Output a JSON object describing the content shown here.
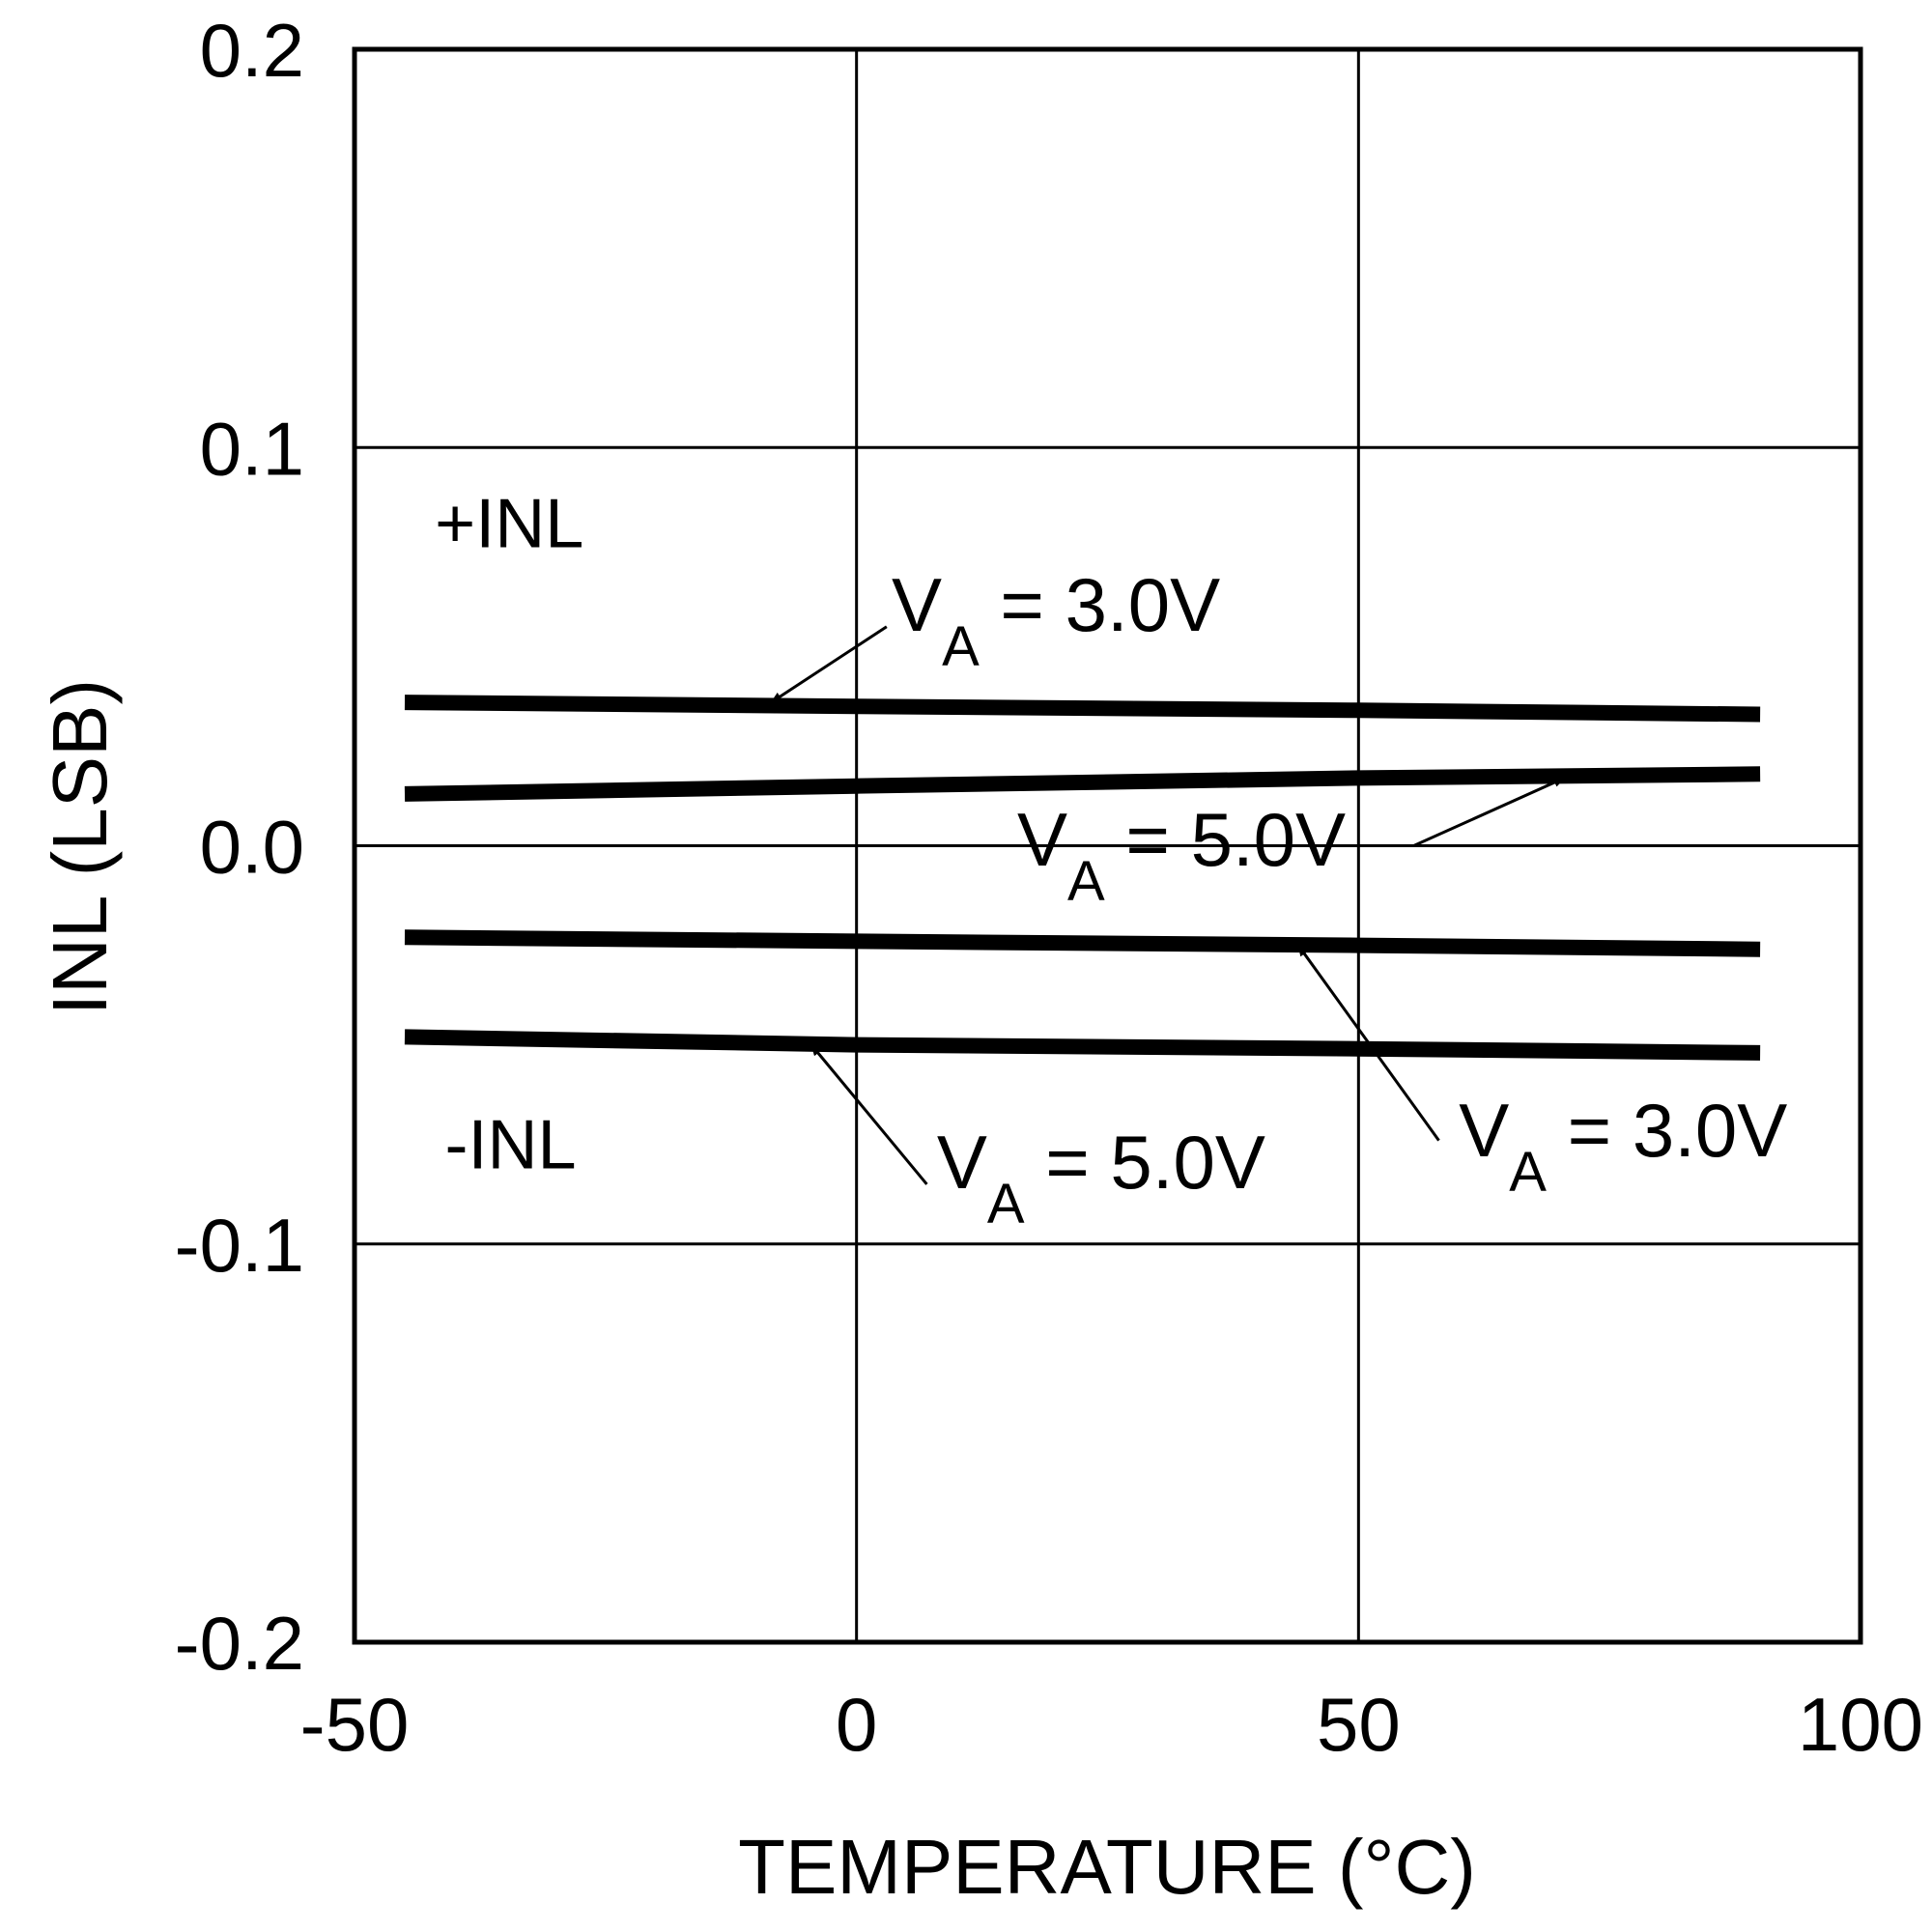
{
  "chart_data": {
    "type": "line",
    "xlabel": "TEMPERATURE (°C)",
    "ylabel": "INL (LSB)",
    "xlim": [
      -50,
      100
    ],
    "ylim": [
      -0.2,
      0.2
    ],
    "xticks": [
      -50,
      0,
      50,
      100
    ],
    "xtick_labels": [
      "-50",
      "0",
      "50",
      "100"
    ],
    "yticks": [
      0.2,
      0.1,
      0.0,
      -0.1,
      -0.2
    ],
    "ytick_labels": [
      "0.2",
      "0.1",
      "0.0",
      "-0.1",
      "-0.2"
    ],
    "grid": true,
    "colors": {
      "line": "#000000",
      "background": "#ffffff"
    },
    "series": [
      {
        "group": "+INL",
        "va": "3.0V",
        "x": [
          -45,
          0,
          50,
          90
        ],
        "y": [
          0.036,
          0.035,
          0.034,
          0.033
        ]
      },
      {
        "group": "+INL",
        "va": "5.0V",
        "x": [
          -45,
          0,
          50,
          90
        ],
        "y": [
          0.013,
          0.015,
          0.017,
          0.018
        ]
      },
      {
        "group": "-INL",
        "va": "3.0V",
        "x": [
          -45,
          0,
          50,
          90
        ],
        "y": [
          -0.023,
          -0.024,
          -0.025,
          -0.026
        ]
      },
      {
        "group": "-INL",
        "va": "5.0V",
        "x": [
          -45,
          0,
          50,
          90
        ],
        "y": [
          -0.048,
          -0.05,
          -0.051,
          -0.052
        ]
      }
    ],
    "regions": [
      {
        "label": "+INL",
        "x": -42,
        "y": 0.075
      },
      {
        "label": "-INL",
        "x": -41,
        "y": -0.081
      }
    ],
    "annotations": [
      {
        "main": "V",
        "sub": "A",
        "rest": " = 3.0V",
        "text_x": 3.5,
        "text_y": 0.054,
        "line_from": [
          3,
          0.055
        ],
        "arrow_to": [
          -8.5,
          0.036
        ]
      },
      {
        "main": "V",
        "sub": "A",
        "rest": " = 5.0V",
        "text_x": 16,
        "text_y": -0.005,
        "line_from": [
          55.5,
          0.0
        ],
        "arrow_to": [
          70.5,
          0.017
        ]
      },
      {
        "main": "V",
        "sub": "A",
        "rest": " = 3.0V",
        "text_x": 60,
        "text_y": -0.078,
        "line_from": [
          58,
          -0.074
        ],
        "arrow_to": [
          44,
          -0.025
        ]
      },
      {
        "main": "V",
        "sub": "A",
        "rest": " = 5.0V",
        "text_x": 8,
        "text_y": -0.086,
        "line_from": [
          7,
          -0.085
        ],
        "arrow_to": [
          -4.5,
          -0.05
        ]
      }
    ]
  }
}
